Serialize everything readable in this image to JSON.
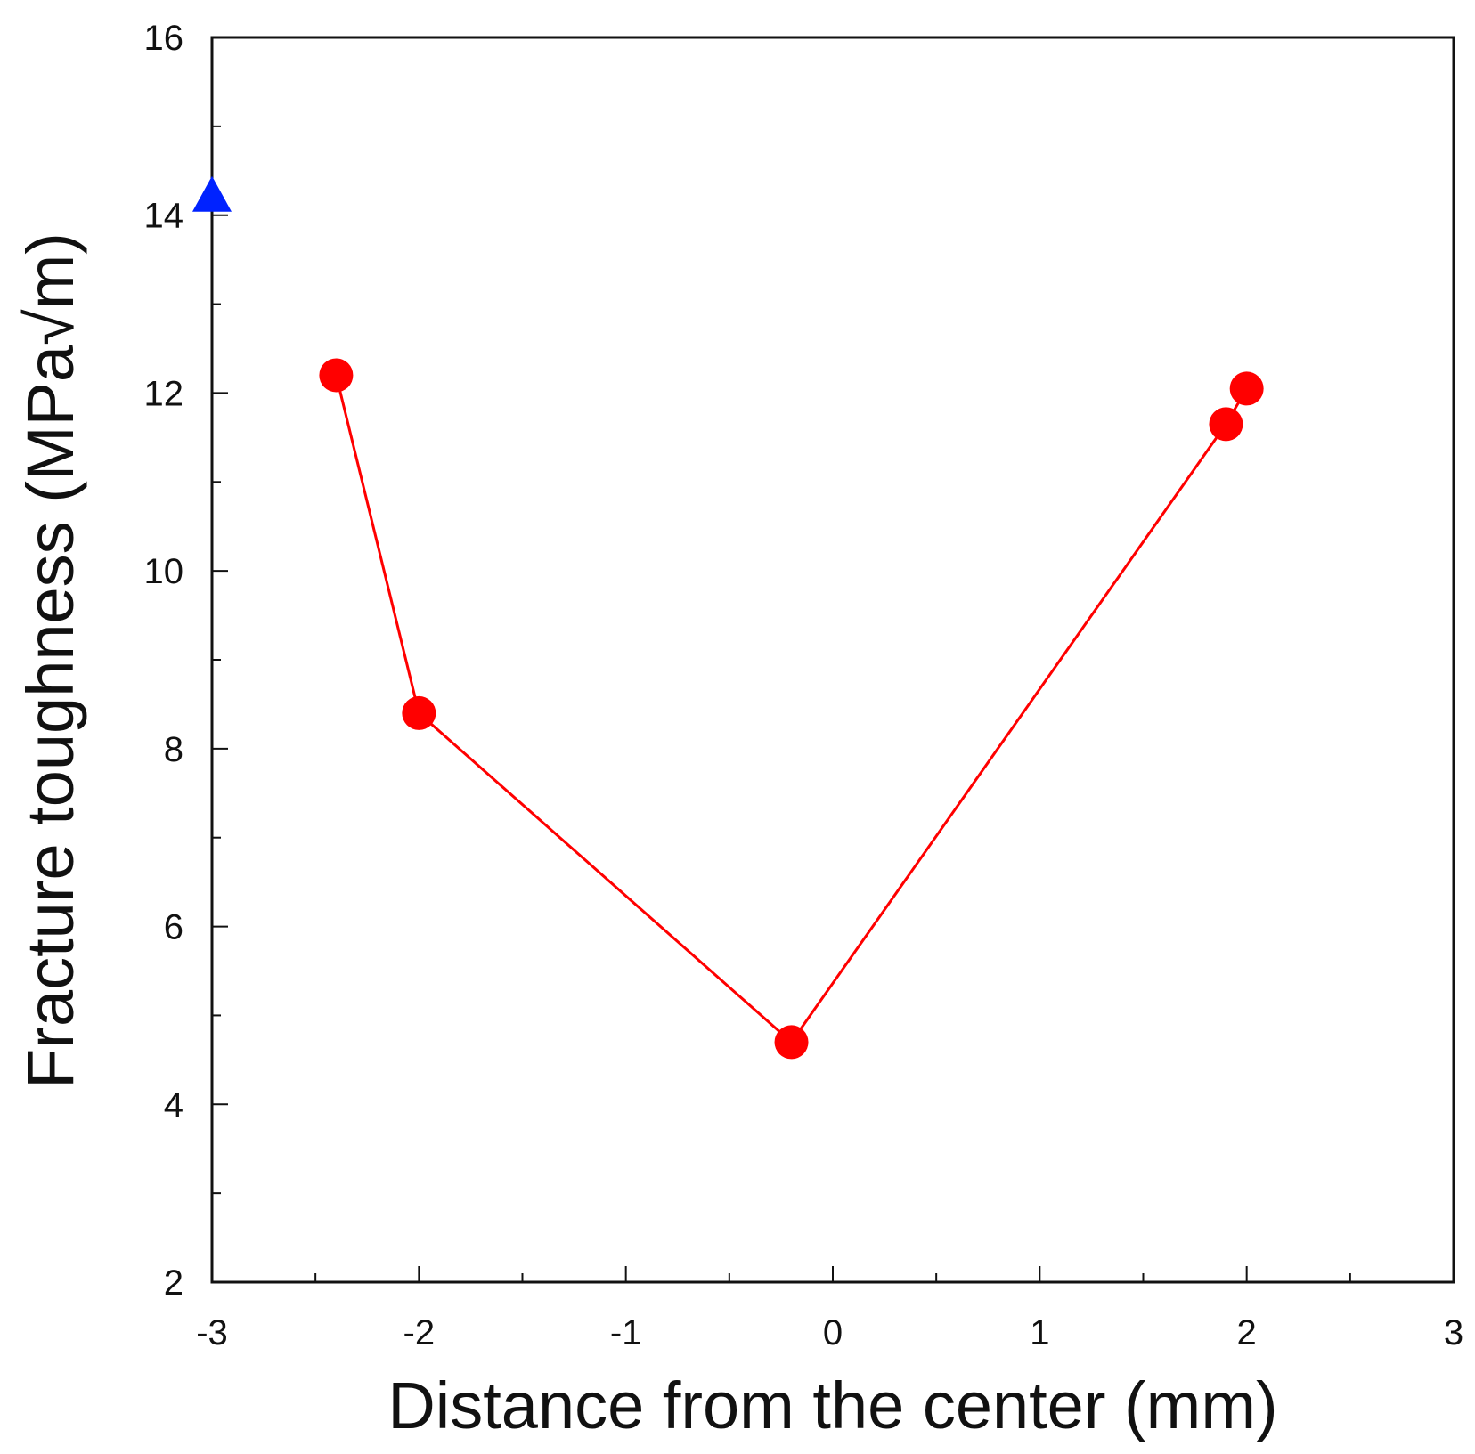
{
  "chart_data": {
    "type": "scatter",
    "xlabel": "Distance from the center (mm)",
    "ylabel": "Fracture toughness  (MPa√m)",
    "xlim": [
      -3,
      3
    ],
    "ylim": [
      2,
      16
    ],
    "x_ticks": [
      "-3",
      "-2",
      "-1",
      "0",
      "1",
      "2",
      "3"
    ],
    "y_ticks": [
      "2",
      "4",
      "6",
      "8",
      "10",
      "12",
      "14",
      "16"
    ],
    "grid": false,
    "series": [
      {
        "marker": "circle",
        "connected": true,
        "color": "#ff0000",
        "points": [
          {
            "x": -2.4,
            "y": 12.2
          },
          {
            "x": -2.0,
            "y": 8.4
          },
          {
            "x": -0.2,
            "y": 4.7
          },
          {
            "x": 1.9,
            "y": 11.65
          },
          {
            "x": 2.0,
            "y": 12.05
          }
        ]
      },
      {
        "marker": "triangle",
        "connected": false,
        "color": "#0022ff",
        "points": [
          {
            "x": -3.0,
            "y": 14.2
          }
        ]
      }
    ]
  }
}
